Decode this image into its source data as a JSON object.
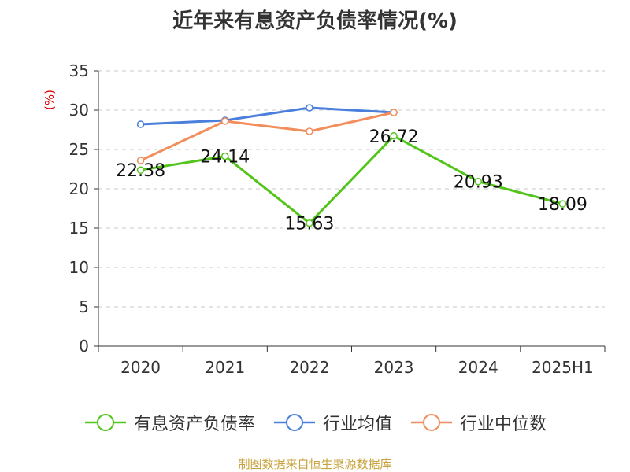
{
  "title": "近年来有息资产负债率情况(%)",
  "footer": "制图数据来自恒生聚源数据库",
  "chart_data": {
    "type": "line",
    "title": "近年来有息资产负债率情况(%)",
    "ylabel": "(%)",
    "xlabel": "",
    "ylim": [
      0,
      35
    ],
    "yticks": [
      0,
      5,
      10,
      15,
      20,
      25,
      30,
      35
    ],
    "categories": [
      "2020",
      "2021",
      "2022",
      "2023",
      "2024",
      "2025H1"
    ],
    "grid": true,
    "legend_position": "bottom",
    "series": [
      {
        "name": "有息资产负债率",
        "color": "#52c41a",
        "values": [
          22.38,
          24.14,
          15.63,
          26.72,
          20.93,
          18.09
        ],
        "labels": [
          "22.38",
          "24.14",
          "15.63",
          "26.72",
          "20.93",
          "18.09"
        ]
      },
      {
        "name": "行业均值",
        "color": "#4a7fdc",
        "values": [
          28.2,
          28.7,
          30.3,
          29.7,
          null,
          null
        ]
      },
      {
        "name": "行业中位数",
        "color": "#f28e5b",
        "values": [
          23.6,
          28.6,
          27.3,
          29.7,
          null,
          null
        ]
      }
    ]
  }
}
